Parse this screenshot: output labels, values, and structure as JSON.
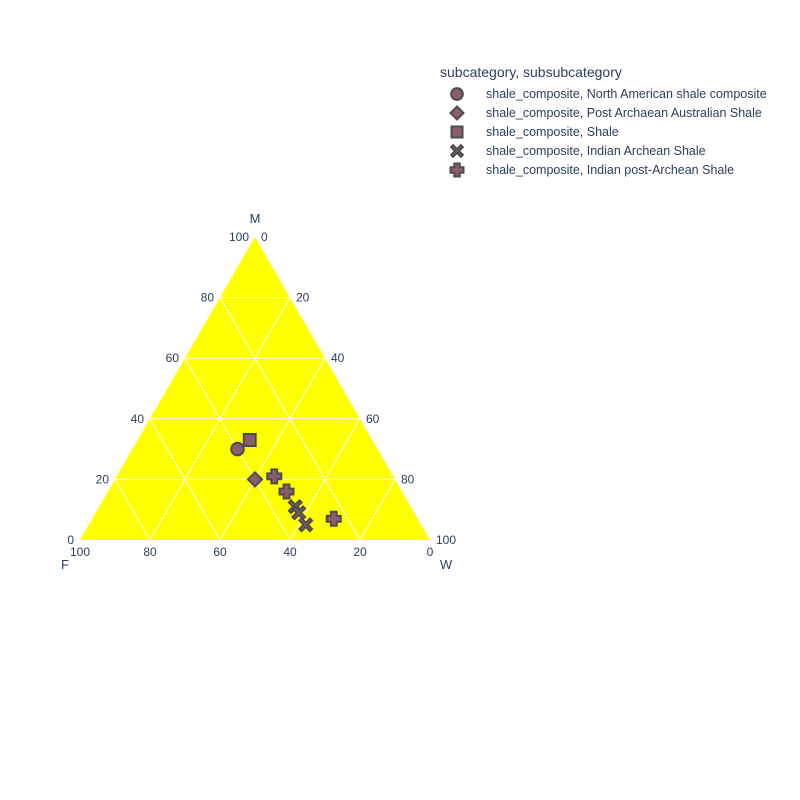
{
  "chart_data": {
    "type": "scatter",
    "subtype": "ternary",
    "axes": {
      "a": {
        "title": "M",
        "ticks": [
          0,
          20,
          40,
          60,
          80,
          100
        ]
      },
      "b": {
        "title": "F",
        "ticks": [
          0,
          20,
          40,
          60,
          80,
          100
        ]
      },
      "c": {
        "title": "W",
        "ticks": [
          0,
          20,
          40,
          60,
          80,
          100
        ]
      }
    },
    "background_color": "#ffff00",
    "grid": true,
    "grid_color": "#ffffff",
    "marker_color": "#8c5d6f",
    "marker_line_color": "#4d4d4d",
    "legend": {
      "title": "subcategory, subsubcategory",
      "placement": "top-right"
    },
    "series": [
      {
        "name": "shale_composite, North American shale composite",
        "symbol": "circle",
        "points": [
          {
            "M": 30,
            "F": 40,
            "W": 30
          }
        ]
      },
      {
        "name": "shale_composite, Post Archaean Australian Shale",
        "symbol": "diamond",
        "points": [
          {
            "M": 20,
            "F": 40,
            "W": 40
          }
        ]
      },
      {
        "name": "shale_composite, Shale",
        "symbol": "square",
        "points": [
          {
            "M": 33,
            "F": 35,
            "W": 32
          }
        ]
      },
      {
        "name": "shale_composite, Indian Archean Shale",
        "symbol": "x",
        "points": [
          {
            "M": 11,
            "F": 33,
            "W": 56
          },
          {
            "M": 9,
            "F": 33,
            "W": 58
          },
          {
            "M": 5,
            "F": 33,
            "W": 62
          }
        ]
      },
      {
        "name": "shale_composite, Indian post-Archean Shale",
        "symbol": "cross",
        "points": [
          {
            "M": 21,
            "F": 34,
            "W": 45
          },
          {
            "M": 16,
            "F": 33,
            "W": 51
          },
          {
            "M": 7,
            "F": 24,
            "W": 69
          }
        ]
      }
    ]
  }
}
